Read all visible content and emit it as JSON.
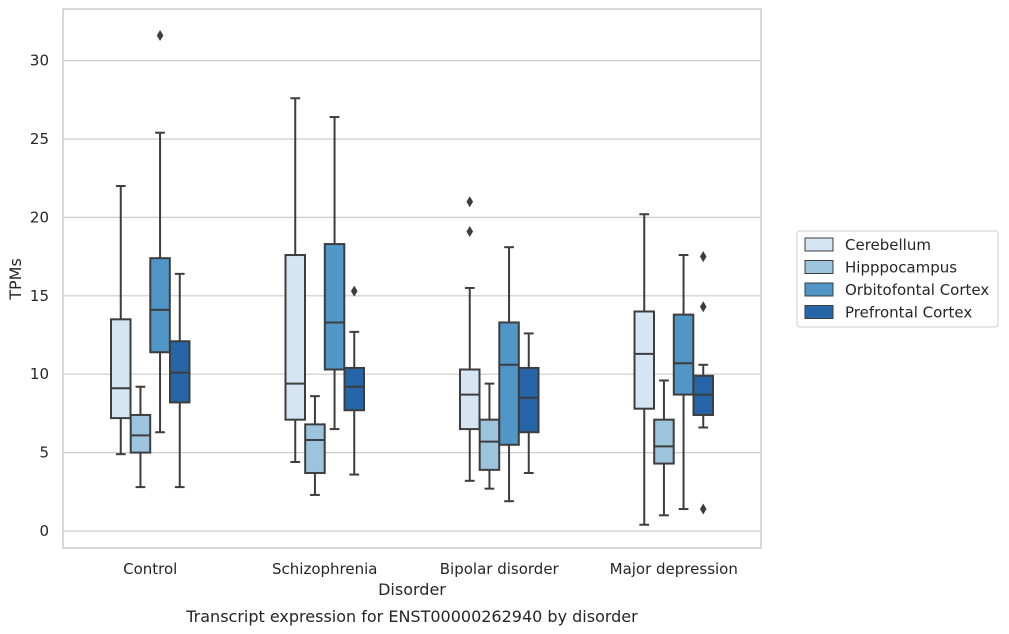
{
  "chart_data": {
    "type": "boxplot",
    "title": "",
    "xlabel": "Disorder",
    "ylabel": "TPMs",
    "caption": "Transcript expression for ENST00000262940 by disorder",
    "ylim": [
      -1.0,
      33.5
    ],
    "yticks": [
      0,
      5,
      10,
      15,
      20,
      25,
      30
    ],
    "grid": "horizontal",
    "legend_position": "outside right",
    "categories": [
      "Control",
      "Schizophrenia",
      "Bipolar disorder",
      "Major depression"
    ],
    "series": [
      {
        "name": "Cerebellum",
        "color": "#d6e5f4",
        "boxes": [
          {
            "whisker_low": 4.9,
            "q1": 7.2,
            "median": 9.1,
            "q3": 13.5,
            "whisker_high": 22.0,
            "outliers": []
          },
          {
            "whisker_low": 4.4,
            "q1": 7.1,
            "median": 9.4,
            "q3": 17.6,
            "whisker_high": 27.6,
            "outliers": []
          },
          {
            "whisker_low": 3.2,
            "q1": 6.5,
            "median": 8.7,
            "q3": 10.3,
            "whisker_high": 15.5,
            "outliers": [
              19.1,
              21.0
            ]
          },
          {
            "whisker_low": 0.4,
            "q1": 7.8,
            "median": 11.3,
            "q3": 14.0,
            "whisker_high": 20.2,
            "outliers": []
          }
        ]
      },
      {
        "name": "Hipppocampus",
        "color": "#9cc5dd",
        "boxes": [
          {
            "whisker_low": 2.8,
            "q1": 5.0,
            "median": 6.1,
            "q3": 7.4,
            "whisker_high": 9.2,
            "outliers": []
          },
          {
            "whisker_low": 2.3,
            "q1": 3.7,
            "median": 5.8,
            "q3": 6.8,
            "whisker_high": 8.6,
            "outliers": []
          },
          {
            "whisker_low": 2.7,
            "q1": 3.9,
            "median": 5.7,
            "q3": 7.1,
            "whisker_high": 9.4,
            "outliers": []
          },
          {
            "whisker_low": 1.0,
            "q1": 4.3,
            "median": 5.4,
            "q3": 7.1,
            "whisker_high": 9.6,
            "outliers": []
          }
        ]
      },
      {
        "name": "Orbitofontal Cortex",
        "color": "#5096c6",
        "boxes": [
          {
            "whisker_low": 6.3,
            "q1": 11.4,
            "median": 14.1,
            "q3": 17.4,
            "whisker_high": 25.4,
            "outliers": [
              31.6
            ]
          },
          {
            "whisker_low": 6.5,
            "q1": 10.3,
            "median": 13.3,
            "q3": 18.3,
            "whisker_high": 26.4,
            "outliers": []
          },
          {
            "whisker_low": 1.9,
            "q1": 5.5,
            "median": 10.6,
            "q3": 13.3,
            "whisker_high": 18.1,
            "outliers": []
          },
          {
            "whisker_low": 1.4,
            "q1": 8.7,
            "median": 10.7,
            "q3": 13.8,
            "whisker_high": 17.6,
            "outliers": []
          }
        ]
      },
      {
        "name": "Prefrontal Cortex",
        "color": "#2565a8",
        "boxes": [
          {
            "whisker_low": 2.8,
            "q1": 8.2,
            "median": 10.1,
            "q3": 12.1,
            "whisker_high": 16.4,
            "outliers": []
          },
          {
            "whisker_low": 3.6,
            "q1": 7.7,
            "median": 9.2,
            "q3": 10.4,
            "whisker_high": 12.7,
            "outliers": [
              15.3
            ]
          },
          {
            "whisker_low": 3.7,
            "q1": 6.3,
            "median": 8.5,
            "q3": 10.4,
            "whisker_high": 12.6,
            "outliers": []
          },
          {
            "whisker_low": 6.6,
            "q1": 7.4,
            "median": 8.7,
            "q3": 9.9,
            "whisker_high": 10.6,
            "outliers": [
              1.4,
              14.3,
              17.5
            ]
          }
        ]
      }
    ]
  }
}
